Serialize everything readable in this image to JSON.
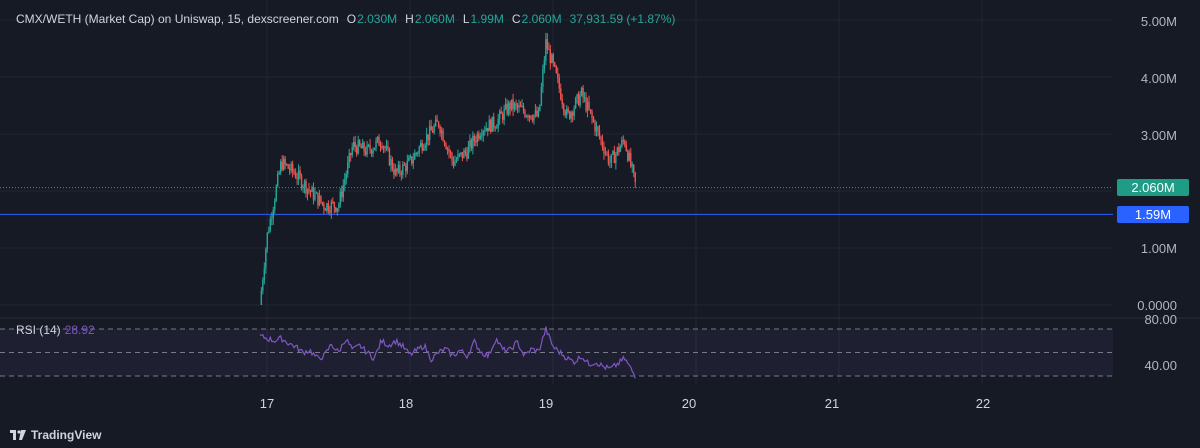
{
  "legend": {
    "title": "CMX/WETH (Market Cap) on Uniswap, 15, dexscreener.com",
    "o_key": "O",
    "o_val": "2.030M",
    "h_key": "H",
    "h_val": "2.060M",
    "l_key": "L",
    "l_val": "1.99M",
    "c_key": "C",
    "c_val": "2.060M",
    "change": "37,931.59 (+1.87%)"
  },
  "price_axis": {
    "labels": [
      "5.00M",
      "4.00M",
      "3.00M",
      "1.00M",
      "0.0000"
    ],
    "last_price_tag": "2.060M",
    "horizontal_line_tag": "1.59M"
  },
  "rsi": {
    "label": "RSI (14)",
    "value": "28.92",
    "axis_labels": [
      "80.00",
      "40.00"
    ]
  },
  "time_axis": {
    "labels": [
      "17",
      "18",
      "19",
      "20",
      "21",
      "22"
    ]
  },
  "branding": {
    "name": "TradingView"
  },
  "colors": {
    "background": "#161a25",
    "up": "#26a69a",
    "down": "#ef5350",
    "rsi_line": "#7e57c2",
    "horizontal_line": "#2962ff",
    "last_price": "#1f9c86"
  },
  "chart_data": {
    "type": "line",
    "title": "CMX/WETH (Market Cap) on Uniswap, 15, dexscreener.com",
    "ylim": [
      0,
      5000000
    ],
    "x_ticks": [
      "17",
      "18",
      "19",
      "20",
      "21",
      "22"
    ],
    "series": [
      {
        "name": "",
        "x": [
          16.95,
          17.0,
          17.1,
          17.2,
          17.3,
          17.4,
          17.5,
          17.6,
          17.7,
          17.8,
          17.9,
          18.0,
          18.1,
          18.2,
          18.3,
          18.4,
          18.5,
          18.6,
          18.7,
          18.8,
          18.9,
          18.95,
          19.0,
          19.1,
          19.2,
          19.3,
          19.4,
          19.5,
          19.58
        ],
        "values": [
          0,
          1200000,
          2500000,
          2300000,
          2000000,
          1750000,
          1750000,
          2800000,
          2700000,
          2900000,
          2300000,
          2500000,
          2900000,
          3200000,
          2500000,
          2700000,
          3100000,
          3200000,
          3500000,
          3400000,
          3300000,
          4600000,
          4200000,
          3300000,
          3700000,
          3100000,
          2500000,
          2900000,
          2060000
        ]
      }
    ],
    "rsi": {
      "name": "RSI (14)",
      "ylim": [
        30,
        80
      ],
      "bands": [
        70,
        50,
        30
      ],
      "x": [
        16.95,
        17.05,
        17.1,
        17.15,
        17.2,
        17.25,
        17.3,
        17.35,
        17.4,
        17.45,
        17.5,
        17.55,
        17.6,
        17.65,
        17.7,
        17.75,
        17.8,
        17.85,
        17.9,
        17.95,
        18.0,
        18.05,
        18.1,
        18.15,
        18.2,
        18.25,
        18.3,
        18.35,
        18.4,
        18.45,
        18.5,
        18.55,
        18.6,
        18.65,
        18.7,
        18.75,
        18.8,
        18.85,
        18.9,
        18.95,
        19.0,
        19.05,
        19.1,
        19.15,
        19.2,
        19.25,
        19.3,
        19.35,
        19.4,
        19.45,
        19.5,
        19.58
      ],
      "values": [
        64,
        60,
        62,
        58,
        55,
        50,
        52,
        45,
        47,
        57,
        50,
        62,
        52,
        56,
        50,
        45,
        60,
        56,
        60,
        55,
        48,
        52,
        56,
        44,
        50,
        53,
        47,
        52,
        47,
        59,
        50,
        47,
        62,
        52,
        52,
        59,
        47,
        53,
        51,
        70,
        55,
        50,
        45,
        42,
        47,
        40,
        42,
        38,
        36,
        40,
        45,
        29
      ]
    }
  }
}
